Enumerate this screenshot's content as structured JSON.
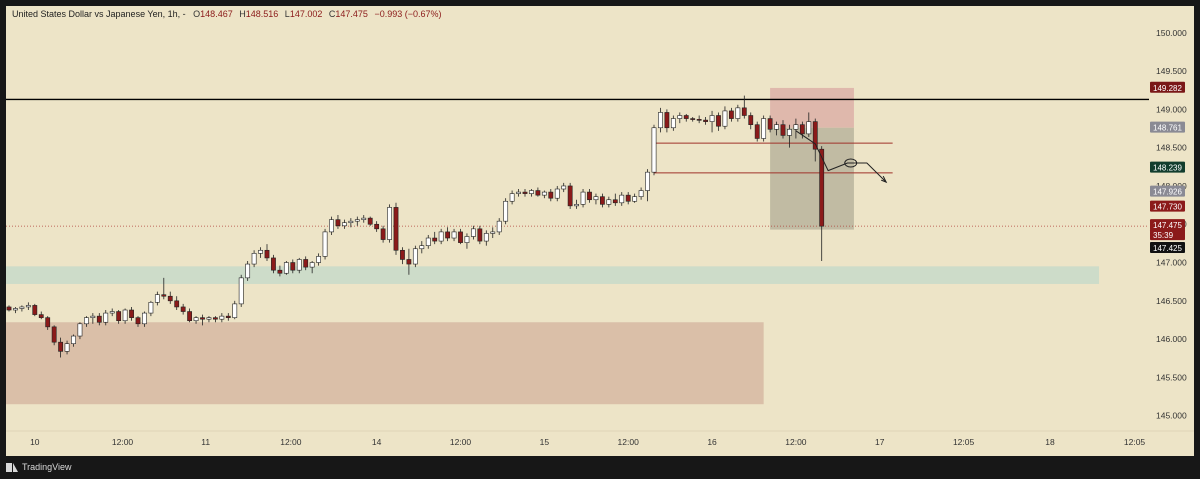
{
  "legend": {
    "title": "United States Dollar vs Japanese Yen, 1h, -",
    "o_label": "O",
    "o_value": "148.467",
    "h_label": "H",
    "h_value": "148.516",
    "l_label": "L",
    "l_value": "147.002",
    "c_label": "C",
    "c_value": "147.475",
    "change": "−0.993 (−0.67%)"
  },
  "footer": {
    "brand": "TradingView"
  },
  "colors": {
    "background": "#ede4c7",
    "up_candle_fill": "#ffffff",
    "down_candle_fill": "#8b1a1a",
    "candle_outline": "#222222",
    "demand_zone": "#c7dbc9",
    "supply_zone": "#d6b8a2",
    "stop_zone": "#d9a9a3",
    "target_zone": "#b8b49c",
    "resistance_line": "#000000",
    "level_lines": "#a0322a"
  },
  "chart_data": {
    "type": "candlestick",
    "title": "United States Dollar vs Japanese Yen, 1h, -",
    "ylim": [
      144.8,
      150.35
    ],
    "y_ticks": [
      "150.000",
      "149.500",
      "149.000",
      "148.500",
      "148.000",
      "147.500",
      "147.000",
      "146.500",
      "146.000",
      "145.500",
      "145.000"
    ],
    "x_ticks": [
      "10",
      "12:00",
      "11",
      "12:00",
      "14",
      "12:00",
      "15",
      "12:00",
      "16",
      "12:00",
      "17",
      "12:05",
      "18",
      "12:05"
    ],
    "price_labels": [
      {
        "text": "149.282",
        "value": 149.282,
        "kind": "resistance"
      },
      {
        "text": "148.761",
        "value": 148.761,
        "kind": "grey"
      },
      {
        "text": "148.239",
        "value": 148.239,
        "kind": "green"
      },
      {
        "text": "147.926",
        "value": 147.926,
        "kind": "grey"
      },
      {
        "text": "147.730",
        "value": 147.73,
        "kind": "red"
      },
      {
        "text": "147.475",
        "value": 147.475,
        "kind": "last"
      },
      {
        "text": "35:39",
        "value": 147.475,
        "kind": "countdown"
      },
      {
        "text": "147.425",
        "value": 147.425,
        "kind": "black"
      }
    ],
    "resistance_level": 149.13,
    "horizontal_levels": [
      148.56,
      148.17
    ],
    "current_price": 147.475,
    "zones": [
      {
        "name": "demand",
        "start_index": 0,
        "end_index": 169,
        "low": 146.72,
        "high": 146.95
      },
      {
        "name": "supply",
        "start_index": 0,
        "end_index": 117,
        "low": 145.15,
        "high": 146.22
      }
    ],
    "position": {
      "start_index": 118,
      "end_index": 131,
      "entry": 148.76,
      "stop": 149.28,
      "target": 147.43
    },
    "projection": [
      [
        122,
        148.72
      ],
      [
        125,
        148.55
      ],
      [
        127,
        148.2
      ],
      [
        130,
        148.3
      ],
      [
        133,
        148.3
      ],
      [
        136,
        148.05
      ]
    ],
    "ohlc": [
      [
        146.42,
        146.44,
        146.36,
        146.38
      ],
      [
        146.38,
        146.42,
        146.34,
        146.4
      ],
      [
        146.4,
        146.44,
        146.36,
        146.42
      ],
      [
        146.42,
        146.48,
        146.38,
        146.44
      ],
      [
        146.44,
        146.46,
        146.3,
        146.32
      ],
      [
        146.32,
        146.36,
        146.26,
        146.28
      ],
      [
        146.28,
        146.3,
        146.12,
        146.16
      ],
      [
        146.16,
        146.18,
        145.92,
        145.96
      ],
      [
        145.96,
        146.02,
        145.76,
        145.84
      ],
      [
        145.84,
        145.98,
        145.8,
        145.94
      ],
      [
        145.94,
        146.06,
        145.9,
        146.04
      ],
      [
        146.04,
        146.22,
        146.0,
        146.2
      ],
      [
        146.2,
        146.3,
        146.16,
        146.28
      ],
      [
        146.28,
        146.34,
        146.2,
        146.3
      ],
      [
        146.3,
        146.34,
        146.18,
        146.22
      ],
      [
        146.22,
        146.38,
        146.18,
        146.34
      ],
      [
        146.34,
        146.4,
        146.3,
        146.36
      ],
      [
        146.36,
        146.38,
        146.2,
        146.24
      ],
      [
        146.24,
        146.4,
        146.2,
        146.38
      ],
      [
        146.38,
        146.42,
        146.24,
        146.28
      ],
      [
        146.28,
        146.3,
        146.16,
        146.2
      ],
      [
        146.2,
        146.36,
        146.16,
        146.34
      ],
      [
        146.34,
        146.5,
        146.3,
        146.48
      ],
      [
        146.48,
        146.62,
        146.44,
        146.58
      ],
      [
        146.58,
        146.8,
        146.52,
        146.56
      ],
      [
        146.56,
        146.62,
        146.46,
        146.5
      ],
      [
        146.5,
        146.56,
        146.38,
        146.42
      ],
      [
        146.42,
        146.46,
        146.32,
        146.36
      ],
      [
        146.36,
        146.4,
        146.22,
        146.24
      ],
      [
        146.24,
        146.3,
        146.2,
        146.28
      ],
      [
        146.28,
        146.32,
        146.18,
        146.26
      ],
      [
        146.26,
        146.3,
        146.22,
        146.28
      ],
      [
        146.28,
        146.3,
        146.22,
        146.26
      ],
      [
        146.26,
        146.34,
        146.22,
        146.3
      ],
      [
        146.3,
        146.34,
        146.24,
        146.28
      ],
      [
        146.28,
        146.5,
        146.26,
        146.46
      ],
      [
        146.46,
        146.84,
        146.42,
        146.8
      ],
      [
        146.8,
        147.02,
        146.76,
        146.98
      ],
      [
        146.98,
        147.16,
        146.94,
        147.12
      ],
      [
        147.12,
        147.2,
        147.06,
        147.16
      ],
      [
        147.16,
        147.24,
        147.02,
        147.06
      ],
      [
        147.06,
        147.1,
        146.86,
        146.9
      ],
      [
        146.9,
        146.96,
        146.82,
        146.86
      ],
      [
        146.86,
        147.02,
        146.84,
        147.0
      ],
      [
        147.0,
        147.04,
        146.86,
        146.9
      ],
      [
        146.9,
        147.06,
        146.86,
        147.04
      ],
      [
        147.04,
        147.08,
        146.9,
        146.94
      ],
      [
        146.94,
        147.02,
        146.86,
        147.0
      ],
      [
        147.0,
        147.12,
        146.96,
        147.08
      ],
      [
        147.08,
        147.44,
        147.04,
        147.4
      ],
      [
        147.4,
        147.6,
        147.36,
        147.56
      ],
      [
        147.56,
        147.62,
        147.44,
        147.48
      ],
      [
        147.48,
        147.56,
        147.44,
        147.52
      ],
      [
        147.52,
        147.58,
        147.46,
        147.54
      ],
      [
        147.54,
        147.6,
        147.48,
        147.56
      ],
      [
        147.56,
        147.62,
        147.52,
        147.58
      ],
      [
        147.58,
        147.6,
        147.48,
        147.5
      ],
      [
        147.5,
        147.54,
        147.4,
        147.44
      ],
      [
        147.44,
        147.48,
        147.26,
        147.3
      ],
      [
        147.3,
        147.76,
        147.26,
        147.72
      ],
      [
        147.72,
        147.78,
        147.1,
        147.16
      ],
      [
        147.16,
        147.2,
        146.98,
        147.04
      ],
      [
        147.04,
        147.18,
        146.84,
        146.98
      ],
      [
        146.98,
        147.22,
        146.94,
        147.18
      ],
      [
        147.18,
        147.28,
        147.12,
        147.22
      ],
      [
        147.22,
        147.36,
        147.18,
        147.32
      ],
      [
        147.32,
        147.4,
        147.24,
        147.28
      ],
      [
        147.28,
        147.44,
        147.24,
        147.4
      ],
      [
        147.4,
        147.46,
        147.28,
        147.32
      ],
      [
        147.32,
        147.44,
        147.28,
        147.4
      ],
      [
        147.4,
        147.44,
        147.24,
        147.26
      ],
      [
        147.26,
        147.38,
        147.18,
        147.34
      ],
      [
        147.34,
        147.48,
        147.3,
        147.44
      ],
      [
        147.44,
        147.48,
        147.24,
        147.28
      ],
      [
        147.28,
        147.42,
        147.22,
        147.38
      ],
      [
        147.38,
        147.46,
        147.32,
        147.4
      ],
      [
        147.4,
        147.58,
        147.36,
        147.54
      ],
      [
        147.54,
        147.84,
        147.5,
        147.8
      ],
      [
        147.8,
        147.94,
        147.76,
        147.9
      ],
      [
        147.9,
        147.96,
        147.86,
        147.92
      ],
      [
        147.92,
        147.96,
        147.86,
        147.9
      ],
      [
        147.9,
        147.96,
        147.86,
        147.94
      ],
      [
        147.94,
        147.98,
        147.86,
        147.88
      ],
      [
        147.88,
        147.94,
        147.84,
        147.92
      ],
      [
        147.92,
        147.96,
        147.8,
        147.84
      ],
      [
        147.84,
        148.0,
        147.8,
        147.96
      ],
      [
        147.96,
        148.04,
        147.92,
        148.0
      ],
      [
        148.0,
        148.04,
        147.7,
        147.74
      ],
      [
        147.74,
        147.82,
        147.7,
        147.76
      ],
      [
        147.76,
        147.96,
        147.72,
        147.92
      ],
      [
        147.92,
        147.96,
        147.78,
        147.82
      ],
      [
        147.82,
        147.9,
        147.76,
        147.86
      ],
      [
        147.86,
        147.9,
        147.72,
        147.76
      ],
      [
        147.76,
        147.86,
        147.72,
        147.82
      ],
      [
        147.82,
        147.9,
        147.74,
        147.78
      ],
      [
        147.78,
        147.92,
        147.74,
        147.88
      ],
      [
        147.88,
        147.92,
        147.76,
        147.8
      ],
      [
        147.8,
        147.9,
        147.78,
        147.86
      ],
      [
        147.86,
        147.98,
        147.82,
        147.94
      ],
      [
        147.94,
        148.22,
        147.8,
        148.18
      ],
      [
        148.18,
        148.8,
        148.14,
        148.76
      ],
      [
        148.76,
        149.02,
        148.7,
        148.96
      ],
      [
        148.96,
        149.0,
        148.7,
        148.76
      ],
      [
        148.76,
        148.92,
        148.72,
        148.88
      ],
      [
        148.88,
        148.96,
        148.82,
        148.92
      ],
      [
        148.92,
        148.94,
        148.84,
        148.88
      ],
      [
        148.88,
        148.9,
        148.84,
        148.87
      ],
      [
        148.87,
        148.92,
        148.82,
        148.86
      ],
      [
        148.86,
        148.9,
        148.8,
        148.84
      ],
      [
        148.84,
        148.98,
        148.7,
        148.92
      ],
      [
        148.92,
        148.96,
        148.72,
        148.78
      ],
      [
        148.78,
        149.04,
        148.74,
        148.98
      ],
      [
        148.98,
        149.02,
        148.84,
        148.88
      ],
      [
        148.88,
        149.06,
        148.84,
        149.02
      ],
      [
        149.02,
        149.18,
        148.88,
        148.92
      ],
      [
        148.92,
        148.96,
        148.74,
        148.8
      ],
      [
        148.8,
        148.84,
        148.58,
        148.62
      ],
      [
        148.62,
        148.92,
        148.58,
        148.88
      ],
      [
        148.88,
        148.92,
        148.7,
        148.74
      ],
      [
        148.74,
        148.84,
        148.66,
        148.8
      ],
      [
        148.8,
        148.86,
        148.62,
        148.66
      ],
      [
        148.66,
        148.8,
        148.5,
        148.74
      ],
      [
        148.74,
        148.88,
        148.62,
        148.8
      ],
      [
        148.8,
        148.84,
        148.62,
        148.68
      ],
      [
        148.68,
        148.96,
        148.64,
        148.84
      ],
      [
        148.84,
        148.88,
        148.32,
        148.48
      ],
      [
        148.48,
        148.52,
        147.02,
        147.475
      ]
    ]
  }
}
